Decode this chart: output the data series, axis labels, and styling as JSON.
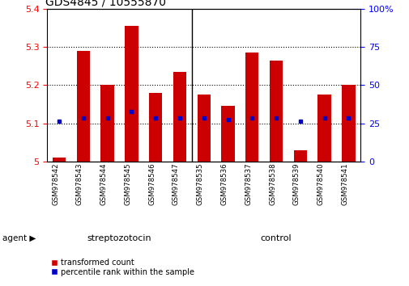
{
  "title": "GDS4845 / 10555870",
  "samples": [
    "GSM978542",
    "GSM978543",
    "GSM978544",
    "GSM978545",
    "GSM978546",
    "GSM978547",
    "GSM978535",
    "GSM978536",
    "GSM978537",
    "GSM978538",
    "GSM978539",
    "GSM978540",
    "GSM978541"
  ],
  "bar_values": [
    5.01,
    5.29,
    5.2,
    5.355,
    5.18,
    5.235,
    5.175,
    5.145,
    5.285,
    5.265,
    5.03,
    5.175,
    5.2
  ],
  "percentile_values": [
    5.105,
    5.115,
    5.115,
    5.13,
    5.115,
    5.115,
    5.115,
    5.11,
    5.115,
    5.115,
    5.105,
    5.115,
    5.115
  ],
  "ylim_left": [
    5.0,
    5.4
  ],
  "ylim_right": [
    0,
    100
  ],
  "bar_color": "#cc0000",
  "dot_color": "#0000cc",
  "bar_base": 5.0,
  "title_fontsize": 10,
  "tick_fontsize": 8,
  "strep_color": "#99ee99",
  "ctrl_color": "#66dd66",
  "strep_count": 6,
  "ctrl_count": 7,
  "legend_labels": [
    "transformed count",
    "percentile rank within the sample"
  ],
  "right_tick_labels": [
    "0",
    "25",
    "50",
    "75",
    "100%"
  ],
  "right_tick_positions": [
    0,
    25,
    50,
    75,
    100
  ],
  "left_tick_labels": [
    "5",
    "5.1",
    "5.2",
    "5.3",
    "5.4"
  ],
  "left_tick_positions": [
    5.0,
    5.1,
    5.2,
    5.3,
    5.4
  ]
}
